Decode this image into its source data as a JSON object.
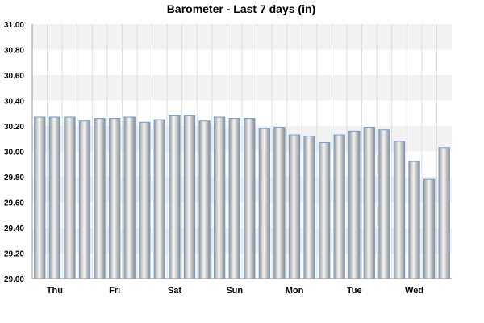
{
  "chart_data": {
    "type": "bar",
    "title": "Barometer - Last 7 days (in)",
    "xlabel": "",
    "ylabel": "",
    "ylim": [
      29.0,
      31.0
    ],
    "yticks": [
      "29.00",
      "29.20",
      "29.40",
      "29.60",
      "29.80",
      "30.00",
      "30.20",
      "30.40",
      "30.60",
      "30.80",
      "31.00"
    ],
    "day_labels": [
      {
        "label": "Thu",
        "bar_index": 1
      },
      {
        "label": "Fri",
        "bar_index": 5
      },
      {
        "label": "Sat",
        "bar_index": 9
      },
      {
        "label": "Sun",
        "bar_index": 13
      },
      {
        "label": "Mon",
        "bar_index": 17
      },
      {
        "label": "Tue",
        "bar_index": 21
      },
      {
        "label": "Wed",
        "bar_index": 25
      }
    ],
    "values": [
      30.27,
      30.27,
      30.27,
      30.24,
      30.26,
      30.26,
      30.27,
      30.23,
      30.25,
      30.28,
      30.28,
      30.24,
      30.27,
      30.26,
      30.26,
      30.18,
      30.19,
      30.13,
      30.12,
      30.07,
      30.13,
      30.16,
      30.19,
      30.17,
      30.08,
      29.92,
      29.78,
      30.03
    ],
    "grid": true,
    "colors": {
      "bar_border": "#6f9fd8",
      "bar_light": "#f4f4f4",
      "bar_dark": "#8e8e8e",
      "band_shaded": "#f2f2f2",
      "gridline": "#dcdcdc",
      "axis": "#999999"
    }
  }
}
